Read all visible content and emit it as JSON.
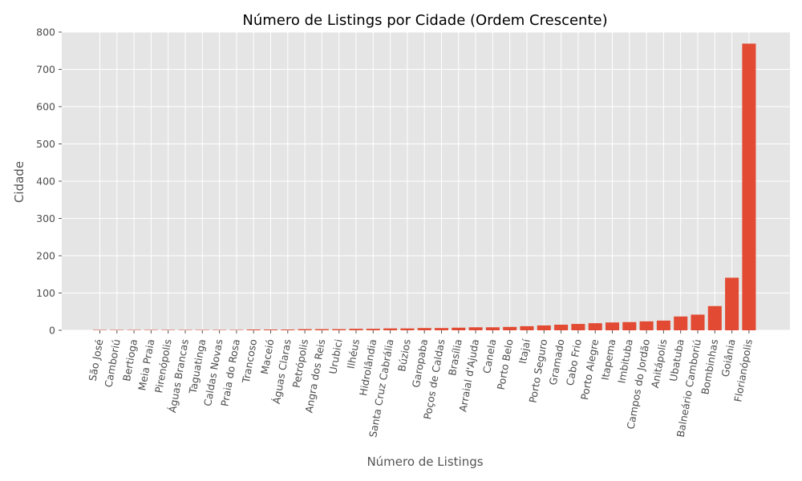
{
  "chart_data": {
    "type": "bar",
    "title": "Número de Listings por Cidade (Ordem Crescente)",
    "xlabel": "Número de Listings",
    "ylabel": "Cidade",
    "ylim": [
      0,
      800
    ],
    "yticks": [
      0,
      100,
      200,
      300,
      400,
      500,
      600,
      700,
      800
    ],
    "grid": true,
    "bar_color": "#E24A33",
    "background_color": "#E5E5E5",
    "categories": [
      "São José",
      "Camboriú",
      "Bertioga",
      "Meia Praia",
      "Pirenópolis",
      "Águas Brancas",
      "Taguatinga",
      "Caldas Novas",
      "Praia do Rosa",
      "Trancoso",
      "Maceió",
      "Águas Claras",
      "Petrópolis",
      "Angra dos Reis",
      "Urubici",
      "Ilhéus",
      "Hidrolândia",
      "Santa Cruz Cabrália",
      "Búzios",
      "Garopaba",
      "Poços de Caldas",
      "Brasília",
      "Arraial d'Ajuda",
      "Canela",
      "Porto Belo",
      "Itajaí",
      "Porto Seguro",
      "Gramado",
      "Cabo Frio",
      "Porto Alegre",
      "Itapema",
      "Imbituba",
      "Campos do Jordão",
      "Anitápolis",
      "Ubatuba",
      "Balneário Camboriú",
      "Bombinhas",
      "Goiânia",
      "Florianópolis"
    ],
    "values": [
      1,
      1,
      1,
      1,
      1,
      1,
      1,
      1,
      1,
      2,
      2,
      2,
      3,
      3,
      3,
      4,
      4,
      5,
      5,
      6,
      6,
      7,
      8,
      8,
      9,
      11,
      13,
      15,
      17,
      19,
      21,
      22,
      24,
      26,
      37,
      42,
      65,
      141,
      769
    ]
  }
}
